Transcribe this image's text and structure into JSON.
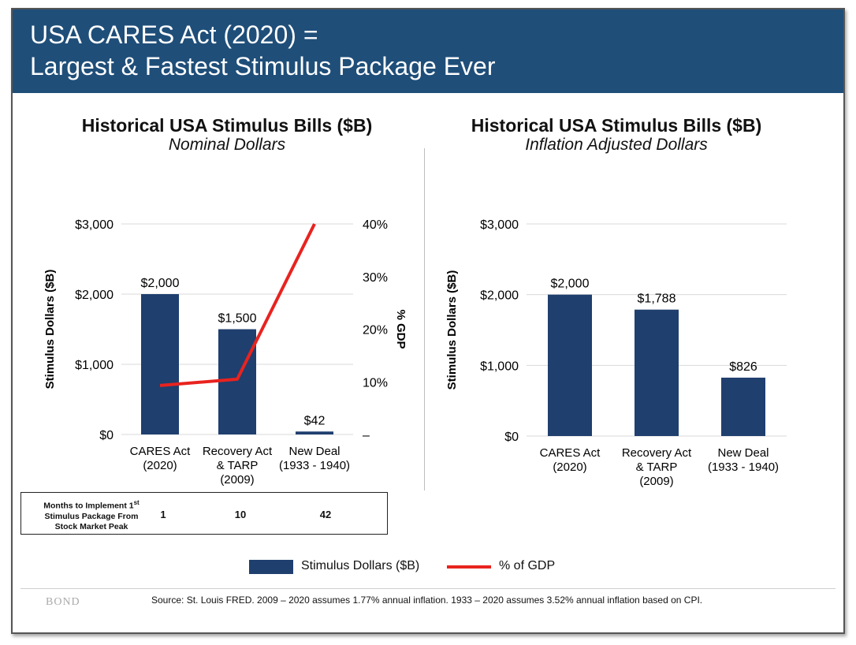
{
  "header": {
    "line1": "USA CARES Act (2020) =",
    "line2": "Largest & Fastest Stimulus Package Ever",
    "background": "#1f4e79"
  },
  "chart_data": [
    {
      "type": "bar",
      "title": "Historical USA Stimulus Bills ($B)",
      "subtitle": "Nominal Dollars",
      "categories": [
        [
          "CARES Act",
          "(2020)"
        ],
        [
          "Recovery Act",
          "& TARP",
          "(2009)"
        ],
        [
          "New Deal",
          "(1933 - 1940)"
        ]
      ],
      "series": [
        {
          "name": "Stimulus Dollars ($B)",
          "type": "bar",
          "axis": "left",
          "values": [
            2000,
            1500,
            42
          ],
          "labels": [
            "$2,000",
            "$1,500",
            "$42"
          ],
          "color": "#1f3f6e"
        },
        {
          "name": "% of GDP",
          "type": "line",
          "axis": "right",
          "values": [
            9.3,
            10.5,
            40
          ],
          "color": "#e8231f"
        }
      ],
      "ylabel": "Stimulus Dollars ($B)",
      "ylim": [
        0,
        3000
      ],
      "yticks": [
        "$0",
        "$1,000",
        "$2,000",
        "$3,000"
      ],
      "y2label": "% GDP",
      "y2lim": [
        0,
        40
      ],
      "y2ticks": [
        "–",
        "10%",
        "20%",
        "30%",
        "40%"
      ],
      "grid": "horizontal"
    },
    {
      "type": "bar",
      "title": "Historical USA Stimulus Bills ($B)",
      "subtitle": "Inflation Adjusted Dollars",
      "categories": [
        [
          "CARES Act",
          "(2020)"
        ],
        [
          "Recovery Act",
          "& TARP",
          "(2009)"
        ],
        [
          "New Deal",
          "(1933 - 1940)"
        ]
      ],
      "series": [
        {
          "name": "Stimulus Dollars ($B)",
          "type": "bar",
          "values": [
            2000,
            1788,
            826
          ],
          "labels": [
            "$2,000",
            "$1,788",
            "$826"
          ],
          "color": "#1f3f6e"
        }
      ],
      "ylabel": "Stimulus Dollars ($B)",
      "ylim": [
        0,
        3000
      ],
      "yticks": [
        "$0",
        "$1,000",
        "$2,000",
        "$3,000"
      ],
      "grid": "horizontal"
    }
  ],
  "months_table": {
    "label_line1": "Months to Implement 1",
    "label_sup": "st",
    "label_line2": "Stimulus Package From",
    "label_line3": "Stock Market Peak",
    "values": [
      "1",
      "10",
      "42"
    ]
  },
  "legend": {
    "bar_label": "Stimulus Dollars ($B)",
    "line_label": "% of GDP"
  },
  "footer": {
    "brand": "BOND",
    "source": "Source: St. Louis FRED. 2009 – 2020 assumes 1.77% annual inflation. 1933 – 2020 assumes 3.52% annual inflation based on CPI."
  }
}
